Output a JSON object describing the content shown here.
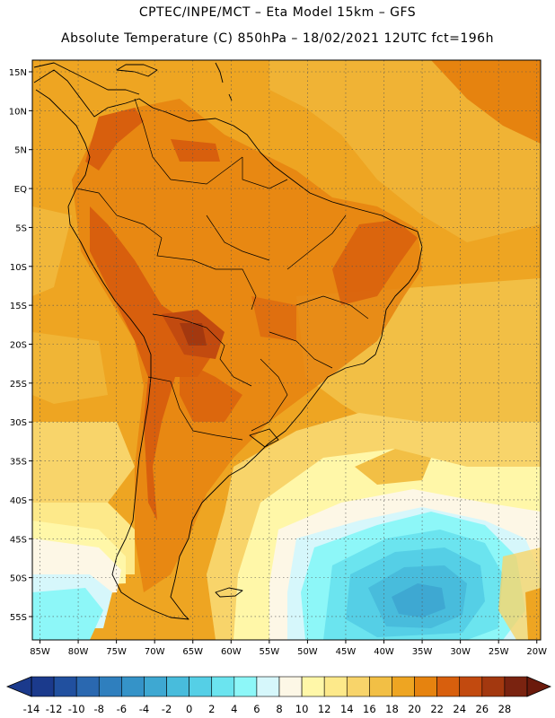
{
  "header": {
    "line1": "CPTEC/INPE/MCT –   Eta Model 15km – GFS",
    "line2": "Absolute Temperature (C) 850hPa – 18/02/2021 12UTC fct=196h"
  },
  "map": {
    "extent": {
      "lon_min": -86,
      "lon_max": -19.5,
      "lat_min": -58,
      "lat_max": 16.5
    },
    "lat_labels": [
      "15N",
      "10N",
      "5N",
      "EQ",
      "5S",
      "10S",
      "15S",
      "20S",
      "25S",
      "30S",
      "35S",
      "40S",
      "45S",
      "50S",
      "55S"
    ],
    "lat_values": [
      15,
      10,
      5,
      0,
      -5,
      -10,
      -15,
      -20,
      -25,
      -30,
      -35,
      -40,
      -45,
      -50,
      -55
    ],
    "lon_labels": [
      "85W",
      "80W",
      "75W",
      "70W",
      "65W",
      "60W",
      "55W",
      "50W",
      "45W",
      "40W",
      "35W",
      "30W",
      "25W",
      "20W"
    ],
    "lon_values": [
      -85,
      -80,
      -75,
      -70,
      -65,
      -60,
      -55,
      -50,
      -45,
      -40,
      -35,
      -30,
      -25,
      -20
    ]
  },
  "colorbar": {
    "labels": [
      "-14",
      "-12",
      "-10",
      "-8",
      "-6",
      "-4",
      "-2",
      "0",
      "2",
      "4",
      "6",
      "8",
      "10",
      "12",
      "14",
      "16",
      "18",
      "20",
      "22",
      "24",
      "26",
      "28"
    ],
    "colors": [
      "#1b3a8c",
      "#21509f",
      "#2a68b0",
      "#2f7fbe",
      "#3593c8",
      "#3ea8d2",
      "#48bcdc",
      "#55cfe6",
      "#6be4ef",
      "#8df7f8",
      "#d6f7fb",
      "#fdf7e6",
      "#fff7a8",
      "#fde98a",
      "#f8d46a",
      "#f2bf45",
      "#eea522",
      "#e6830f",
      "#d85f0d",
      "#c24a0f",
      "#a3380f",
      "#7a2310"
    ],
    "left_arrow_color": "#1b3a8c",
    "right_arrow_color": "#6b1a0c"
  }
}
